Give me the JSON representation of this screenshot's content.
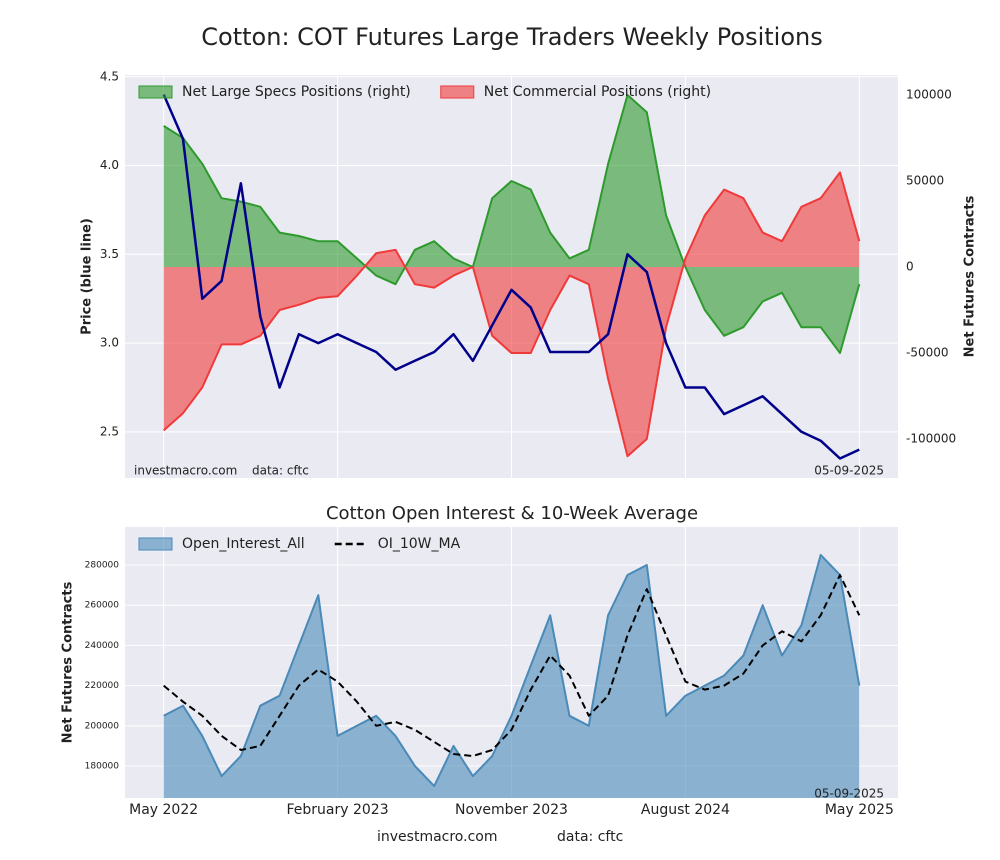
{
  "title": "Cotton: COT Futures Large Traders Weekly Positions",
  "footer": [
    "investmacro.com",
    "data: cftc"
  ],
  "chart_data": [
    {
      "type": "line",
      "x": [
        "2022-05",
        "2022-06",
        "2022-07",
        "2022-08",
        "2022-09",
        "2022-10",
        "2022-11",
        "2022-12",
        "2023-01",
        "2023-02",
        "2023-03",
        "2023-04",
        "2023-05",
        "2023-06",
        "2023-07",
        "2023-08",
        "2023-09",
        "2023-10",
        "2023-11",
        "2023-12",
        "2024-01",
        "2024-02",
        "2024-03",
        "2024-04",
        "2024-05",
        "2024-06",
        "2024-07",
        "2024-08",
        "2024-09",
        "2024-10",
        "2024-11",
        "2024-12",
        "2025-01",
        "2025-02",
        "2025-03",
        "2025-04",
        "2025-05"
      ],
      "xlim": [
        "2022-03",
        "2025-07"
      ],
      "ylabel": "Price (blue line)",
      "y2label": "Net Futures Contracts",
      "ylim": [
        2.24,
        4.51
      ],
      "yticks": [
        2.5,
        {
          "value": 3,
          "label": "3.0"
        },
        3.5,
        {
          "value": 4,
          "label": "4.0"
        },
        4.5
      ],
      "y2lim": [
        -122700,
        111600
      ],
      "y2ticks": [
        -100000,
        -50000,
        0,
        50000,
        100000
      ],
      "grid": true,
      "legend": "upper left",
      "notes": [
        "investmacro.com",
        "data: cftc",
        "05-09-2025"
      ],
      "series": [
        {
          "style": "line",
          "color": "#00008b",
          "values": [
            4.4,
            4.15,
            3.25,
            3.35,
            3.9,
            3.15,
            2.75,
            3.05,
            3.0,
            3.05,
            3.0,
            2.95,
            2.85,
            2.9,
            2.95,
            3.05,
            2.9,
            3.1,
            3.3,
            3.2,
            2.95,
            2.95,
            2.95,
            3.05,
            3.5,
            3.4,
            3.0,
            2.75,
            2.75,
            2.6,
            2.65,
            2.7,
            2.6,
            2.5,
            2.45,
            2.35,
            2.4
          ]
        },
        {
          "name": "Net Large Specs Positions (right)",
          "style": "area",
          "axis": "y2",
          "color": "#2e9a2e",
          "values": [
            82000,
            75000,
            60000,
            40000,
            38000,
            35000,
            20000,
            18000,
            15000,
            15000,
            5000,
            -5000,
            -10000,
            10000,
            15000,
            5000,
            0,
            40000,
            50000,
            45000,
            20000,
            5000,
            10000,
            60000,
            100000,
            90000,
            30000,
            0,
            -25000,
            -40000,
            -35000,
            -20000,
            -15000,
            -35000,
            -35000,
            -50000,
            -10000
          ]
        },
        {
          "name": "Net Commercial Positions (right)",
          "style": "area",
          "axis": "y2",
          "color": "#f03a3a",
          "values": [
            -95000,
            -85000,
            -70000,
            -45000,
            -45000,
            -40000,
            -25000,
            -22000,
            -18000,
            -17000,
            -5000,
            8000,
            10000,
            -10000,
            -12000,
            -5000,
            0,
            -40000,
            -50000,
            -50000,
            -25000,
            -5000,
            -10000,
            -65000,
            -110000,
            -100000,
            -35000,
            5000,
            30000,
            45000,
            40000,
            20000,
            15000,
            35000,
            40000,
            55000,
            15000
          ]
        }
      ]
    },
    {
      "type": "area",
      "title": "Cotton Open Interest & 10-Week Average",
      "x": [
        "2022-05",
        "2022-06",
        "2022-07",
        "2022-08",
        "2022-09",
        "2022-10",
        "2022-11",
        "2022-12",
        "2023-01",
        "2023-02",
        "2023-03",
        "2023-04",
        "2023-05",
        "2023-06",
        "2023-07",
        "2023-08",
        "2023-09",
        "2023-10",
        "2023-11",
        "2023-12",
        "2024-01",
        "2024-02",
        "2024-03",
        "2024-04",
        "2024-05",
        "2024-06",
        "2024-07",
        "2024-08",
        "2024-09",
        "2024-10",
        "2024-11",
        "2024-12",
        "2025-01",
        "2025-02",
        "2025-03",
        "2025-04",
        "2025-05"
      ],
      "xlim": [
        "2022-03",
        "2025-07"
      ],
      "xticks": [
        {
          "value": "2022-05",
          "label": "May 2022"
        },
        {
          "value": "2023-02",
          "label": "February 2023"
        },
        {
          "value": "2023-11",
          "label": "November 2023"
        },
        {
          "value": "2024-08",
          "label": "August 2024"
        },
        {
          "value": "2025-05",
          "label": "May 2025"
        }
      ],
      "ylabel": "Net Futures Contracts",
      "ylim": [
        164100,
        298900
      ],
      "yticks": [
        180000,
        200000,
        220000,
        240000,
        260000,
        280000
      ],
      "grid": true,
      "legend": "upper left",
      "notes": [
        "05-09-2025"
      ],
      "series": [
        {
          "name": "Open_Interest_All",
          "style": "area",
          "color": "#4a8ab8",
          "values": [
            205000,
            210000,
            195000,
            175000,
            185000,
            210000,
            215000,
            240000,
            265000,
            195000,
            200000,
            205000,
            195000,
            180000,
            170000,
            190000,
            175000,
            185000,
            205000,
            230000,
            255000,
            205000,
            200000,
            255000,
            275000,
            280000,
            205000,
            215000,
            220000,
            225000,
            235000,
            260000,
            235000,
            250000,
            285000,
            275000,
            220000
          ]
        },
        {
          "name": "OI_10W_MA",
          "style": "dashed",
          "color": "#000000",
          "values": [
            220000,
            212000,
            205000,
            195000,
            188000,
            190000,
            205000,
            220000,
            228000,
            222000,
            212000,
            200000,
            202000,
            198000,
            192000,
            186000,
            185000,
            188000,
            198000,
            218000,
            235000,
            225000,
            205000,
            215000,
            245000,
            268000,
            245000,
            222000,
            218000,
            220000,
            226000,
            240000,
            247000,
            242000,
            255000,
            275000,
            255000
          ]
        }
      ]
    }
  ]
}
